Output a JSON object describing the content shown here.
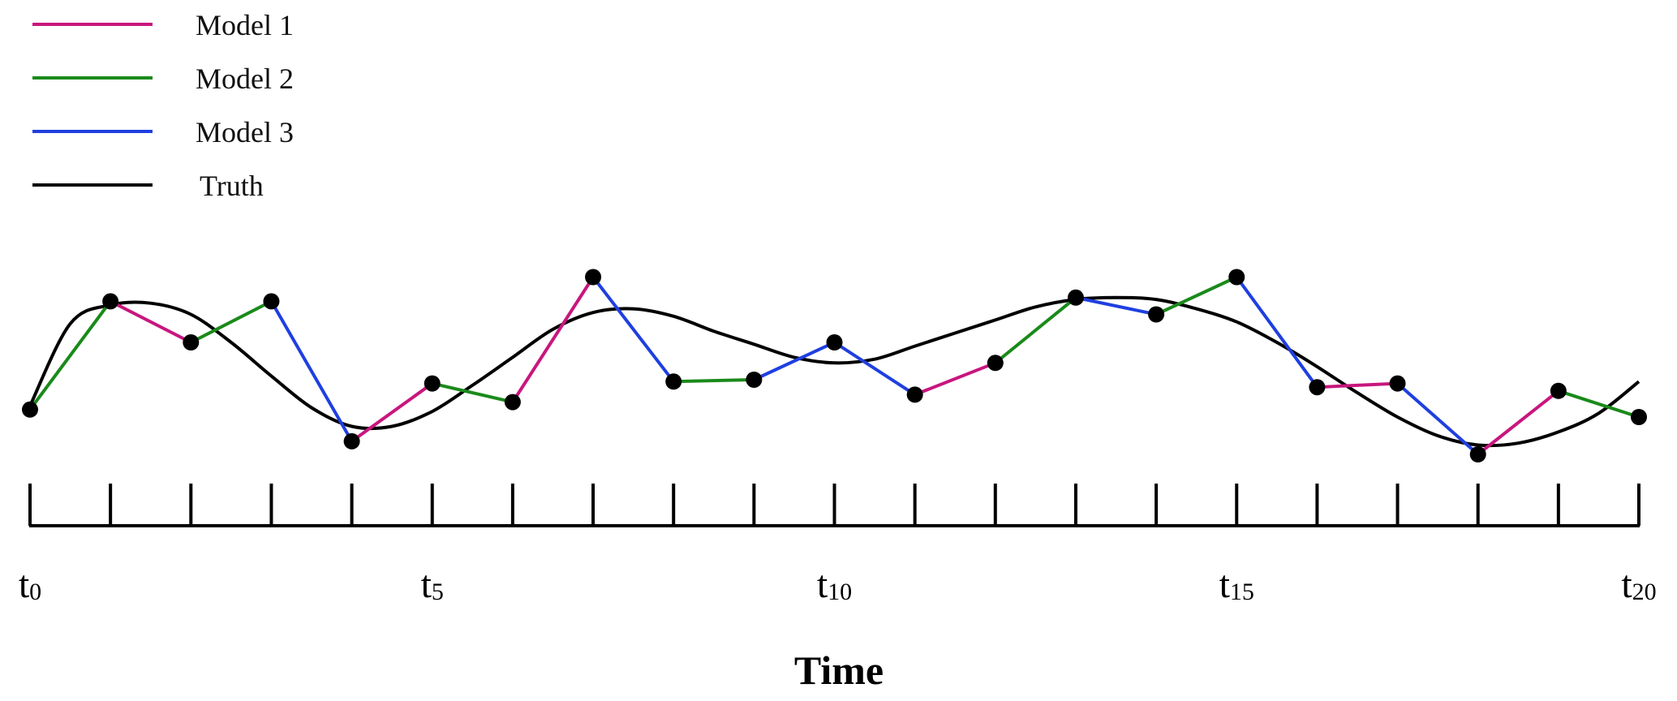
{
  "chart_data": {
    "type": "line",
    "title": "",
    "xlabel": "Time",
    "ylabel": "",
    "x": [
      0,
      1,
      2,
      3,
      4,
      5,
      6,
      7,
      8,
      9,
      10,
      11,
      12,
      13,
      14,
      15,
      16,
      17,
      18,
      19,
      20
    ],
    "xlim": [
      0,
      20
    ],
    "ylim": [
      0,
      1
    ],
    "legend_position": "top-left",
    "grid": false,
    "tick_labels": [
      {
        "x": 0,
        "base": "t",
        "sub": "0"
      },
      {
        "x": 5,
        "base": "t",
        "sub": "5"
      },
      {
        "x": 10,
        "base": "t",
        "sub": "10"
      },
      {
        "x": 15,
        "base": "t",
        "sub": "15"
      },
      {
        "x": 20,
        "base": "t",
        "sub": "20"
      }
    ],
    "observations": [
      0.24,
      0.82,
      0.6,
      0.82,
      0.07,
      0.38,
      0.28,
      0.95,
      0.39,
      0.4,
      0.6,
      0.32,
      0.49,
      0.84,
      0.75,
      0.95,
      0.36,
      0.38,
      0,
      0.34,
      0.2
    ],
    "segments": [
      {
        "series": "Model 2",
        "from": 0,
        "to": 1
      },
      {
        "series": "Model 1",
        "from": 1,
        "to": 2
      },
      {
        "series": "Model 2",
        "from": 2,
        "to": 3
      },
      {
        "series": "Model 3",
        "from": 3,
        "to": 4
      },
      {
        "series": "Model 1",
        "from": 4,
        "to": 5
      },
      {
        "series": "Model 2",
        "from": 5,
        "to": 6
      },
      {
        "series": "Model 1",
        "from": 6,
        "to": 7
      },
      {
        "series": "Model 3",
        "from": 7,
        "to": 8
      },
      {
        "series": "Model 2",
        "from": 8,
        "to": 9
      },
      {
        "series": "Model 3",
        "from": 9,
        "to": 10
      },
      {
        "series": "Model 3",
        "from": 10,
        "to": 11
      },
      {
        "series": "Model 1",
        "from": 11,
        "to": 12
      },
      {
        "series": "Model 2",
        "from": 12,
        "to": 13
      },
      {
        "series": "Model 3",
        "from": 13,
        "to": 14
      },
      {
        "series": "Model 2",
        "from": 14,
        "to": 15
      },
      {
        "series": "Model 3",
        "from": 15,
        "to": 16
      },
      {
        "series": "Model 1",
        "from": 16,
        "to": 17
      },
      {
        "series": "Model 3",
        "from": 17,
        "to": 18
      },
      {
        "series": "Model 1",
        "from": 18,
        "to": 19
      },
      {
        "series": "Model 2",
        "from": 19,
        "to": 20
      }
    ],
    "truth": {
      "x": [
        0,
        0.5,
        1,
        1.5,
        2,
        2.5,
        3,
        3.5,
        4,
        4.5,
        5,
        5.5,
        6,
        6.5,
        7,
        7.5,
        8,
        8.5,
        9,
        9.5,
        10,
        10.5,
        11,
        11.5,
        12,
        12.5,
        13,
        13.5,
        14,
        14.5,
        15,
        15.5,
        16,
        16.5,
        17,
        17.5,
        18,
        18.5,
        19,
        19.5,
        20
      ],
      "y": [
        0.26,
        0.7,
        0.8,
        0.81,
        0.75,
        0.6,
        0.42,
        0.25,
        0.15,
        0.15,
        0.23,
        0.37,
        0.52,
        0.67,
        0.76,
        0.78,
        0.74,
        0.66,
        0.59,
        0.52,
        0.49,
        0.51,
        0.58,
        0.65,
        0.72,
        0.79,
        0.83,
        0.84,
        0.83,
        0.78,
        0.71,
        0.6,
        0.47,
        0.33,
        0.2,
        0.1,
        0.05,
        0.06,
        0.12,
        0.22,
        0.39
      ]
    },
    "series": [
      {
        "name": "Model 1",
        "color": "#c8167e"
      },
      {
        "name": "Model 2",
        "color": "#1a8a1a"
      },
      {
        "name": "Model 3",
        "color": "#1f3fe0"
      },
      {
        "name": "Truth",
        "color": "#000000"
      }
    ]
  }
}
